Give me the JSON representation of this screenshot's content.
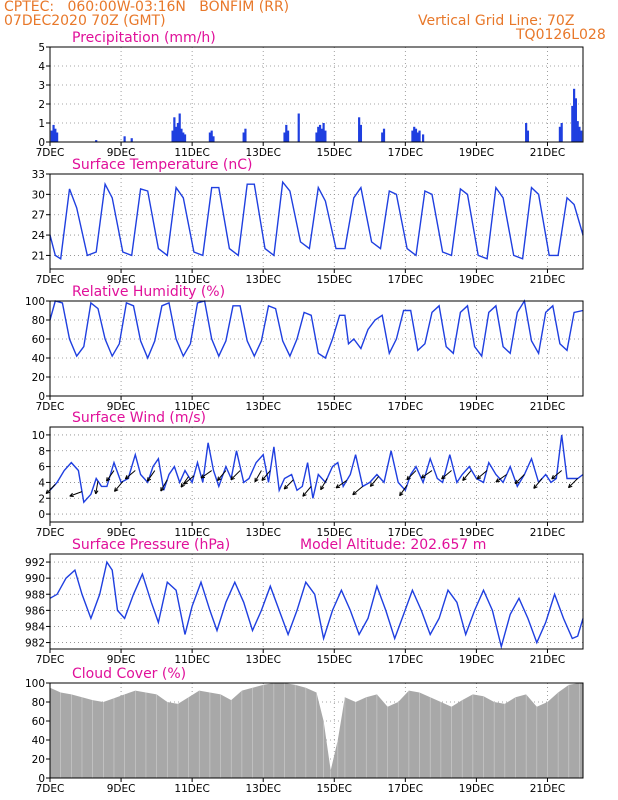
{
  "header": {
    "line1": "CPTEC:   060:00W-03:16N   BONFIM (RR)",
    "line2": "07DEC2020 70Z (GMT)",
    "right1": "Vertical Grid Line: 70Z",
    "right2": "TQ0126L028"
  },
  "colors": {
    "series": "#1f3fe0",
    "title": "#e0109a",
    "header": "#e8782a",
    "cloud": "#a8a8a8",
    "arrow": "#000000"
  },
  "x_axis": {
    "range_days": [
      7,
      22
    ],
    "tick_days": [
      7,
      9,
      11,
      13,
      15,
      17,
      19,
      21
    ],
    "tick_labels": [
      "7DEC",
      "9DEC",
      "11DEC",
      "13DEC",
      "15DEC",
      "17DEC",
      "19DEC",
      "21DEC"
    ]
  },
  "chart_data": [
    {
      "type": "bar",
      "id": "precip",
      "title": "Precipitation (mm/h)",
      "ylim": [
        0,
        5
      ],
      "yticks": [
        0,
        1,
        2,
        3,
        4,
        5
      ],
      "x": [
        7.05,
        7.1,
        7.15,
        7.2,
        8.3,
        9.1,
        9.3,
        10.45,
        10.5,
        10.55,
        10.6,
        10.65,
        10.7,
        10.75,
        10.8,
        11.5,
        11.55,
        11.6,
        12.45,
        12.5,
        13.6,
        13.65,
        13.7,
        14.0,
        14.5,
        14.55,
        14.6,
        14.65,
        14.7,
        14.75,
        15.7,
        15.75,
        16.35,
        16.4,
        17.2,
        17.25,
        17.3,
        17.35,
        17.4,
        17.5,
        20.4,
        20.45,
        21.35,
        21.4,
        21.7,
        21.75,
        21.8,
        21.85,
        21.9,
        21.95
      ],
      "values": [
        0.6,
        0.9,
        0.7,
        0.5,
        0.1,
        0.3,
        0.2,
        0.6,
        1.3,
        0.8,
        1.0,
        1.5,
        0.7,
        0.5,
        0.4,
        0.5,
        0.6,
        0.3,
        0.5,
        0.7,
        0.5,
        0.9,
        0.6,
        1.5,
        0.5,
        0.8,
        0.9,
        0.7,
        1.0,
        0.6,
        1.3,
        0.9,
        0.5,
        0.7,
        0.6,
        0.8,
        0.7,
        0.5,
        0.6,
        0.4,
        1.0,
        0.6,
        0.8,
        1.0,
        1.9,
        2.8,
        2.3,
        1.1,
        0.8,
        0.6
      ]
    },
    {
      "type": "line",
      "id": "temp",
      "title": "Surface Temperature (nC)",
      "ylim": [
        19,
        33
      ],
      "yticks": [
        21,
        24,
        27,
        30,
        33
      ],
      "x": [
        7.0,
        7.15,
        7.3,
        7.55,
        7.75,
        8.05,
        8.3,
        8.55,
        8.75,
        9.05,
        9.3,
        9.55,
        9.75,
        10.05,
        10.3,
        10.55,
        10.75,
        11.05,
        11.3,
        11.55,
        11.75,
        12.05,
        12.3,
        12.55,
        12.75,
        13.05,
        13.3,
        13.55,
        13.75,
        14.05,
        14.3,
        14.55,
        14.75,
        15.05,
        15.3,
        15.55,
        15.75,
        16.05,
        16.3,
        16.55,
        16.75,
        17.05,
        17.3,
        17.55,
        17.75,
        18.05,
        18.3,
        18.55,
        18.75,
        19.05,
        19.3,
        19.55,
        19.75,
        20.05,
        20.3,
        20.55,
        20.75,
        21.05,
        21.3,
        21.55,
        21.75,
        22.0
      ],
      "values": [
        24,
        21,
        20.5,
        30.8,
        28,
        21,
        21.5,
        31.5,
        29.5,
        21.5,
        21,
        30.8,
        30.5,
        22,
        21,
        31,
        29.5,
        21.5,
        21,
        31,
        31,
        22,
        21,
        31.5,
        31.5,
        22,
        21,
        31.8,
        30.5,
        23,
        22,
        31,
        29,
        22,
        22,
        29.5,
        31,
        23,
        22,
        30.5,
        30,
        22,
        21,
        30.5,
        30,
        21.5,
        21,
        30.8,
        30,
        21,
        20.5,
        31,
        29.5,
        21,
        20.5,
        31,
        30,
        21,
        21,
        29.5,
        28.5,
        24
      ]
    },
    {
      "type": "line",
      "id": "rh",
      "title": "Relative Humidity (%)",
      "ylim": [
        0,
        100
      ],
      "yticks": [
        0,
        20,
        40,
        60,
        80,
        100
      ],
      "x": [
        7.0,
        7.15,
        7.35,
        7.55,
        7.75,
        7.95,
        8.15,
        8.35,
        8.55,
        8.75,
        8.95,
        9.15,
        9.35,
        9.55,
        9.75,
        9.95,
        10.15,
        10.35,
        10.55,
        10.75,
        10.95,
        11.15,
        11.35,
        11.55,
        11.75,
        11.95,
        12.15,
        12.35,
        12.55,
        12.75,
        12.95,
        13.15,
        13.35,
        13.55,
        13.75,
        13.95,
        14.15,
        14.35,
        14.55,
        14.75,
        14.95,
        15.15,
        15.3,
        15.4,
        15.55,
        15.75,
        15.95,
        16.15,
        16.35,
        16.55,
        16.75,
        16.95,
        17.15,
        17.35,
        17.55,
        17.75,
        17.95,
        18.15,
        18.35,
        18.55,
        18.75,
        18.95,
        19.15,
        19.35,
        19.55,
        19.75,
        19.95,
        20.15,
        20.35,
        20.55,
        20.75,
        20.95,
        21.15,
        21.35,
        21.55,
        21.75,
        22.0
      ],
      "values": [
        80,
        100,
        98,
        60,
        42,
        52,
        98,
        92,
        60,
        42,
        55,
        98,
        95,
        58,
        40,
        58,
        95,
        98,
        60,
        42,
        55,
        98,
        100,
        60,
        42,
        58,
        95,
        95,
        58,
        42,
        58,
        95,
        92,
        58,
        42,
        60,
        88,
        85,
        45,
        40,
        60,
        85,
        85,
        55,
        60,
        50,
        70,
        80,
        85,
        45,
        60,
        90,
        90,
        48,
        55,
        88,
        95,
        52,
        45,
        88,
        95,
        52,
        42,
        88,
        95,
        52,
        45,
        88,
        100,
        58,
        45,
        88,
        95,
        55,
        48,
        88,
        90
      ]
    },
    {
      "type": "line",
      "id": "wind",
      "title": "Surface Wind (m/s)",
      "ylim": [
        -1,
        11
      ],
      "yticks": [
        0,
        2,
        4,
        6,
        8,
        10
      ],
      "x": [
        7.0,
        7.2,
        7.4,
        7.6,
        7.8,
        7.95,
        8.15,
        8.3,
        8.45,
        8.6,
        8.8,
        9.0,
        9.2,
        9.4,
        9.55,
        9.75,
        9.9,
        10.05,
        10.2,
        10.35,
        10.5,
        10.65,
        10.8,
        11.0,
        11.15,
        11.3,
        11.45,
        11.6,
        11.75,
        11.95,
        12.1,
        12.25,
        12.45,
        12.6,
        12.8,
        13.0,
        13.15,
        13.3,
        13.45,
        13.6,
        13.8,
        13.95,
        14.1,
        14.25,
        14.4,
        14.55,
        14.75,
        14.95,
        15.1,
        15.25,
        15.45,
        15.6,
        15.8,
        16.0,
        16.2,
        16.4,
        16.6,
        16.8,
        17.0,
        17.15,
        17.3,
        17.5,
        17.7,
        17.9,
        18.05,
        18.25,
        18.45,
        18.6,
        18.8,
        19.0,
        19.2,
        19.35,
        19.55,
        19.75,
        19.95,
        20.15,
        20.35,
        20.55,
        20.75,
        20.95,
        21.1,
        21.25,
        21.4,
        21.55,
        21.7,
        21.85,
        22.0
      ],
      "values": [
        3,
        4,
        5.5,
        6.5,
        5.5,
        1.5,
        2.5,
        4.5,
        3.5,
        3.5,
        6.5,
        4,
        4.5,
        7.5,
        5,
        4,
        6,
        7,
        3,
        5,
        6,
        4,
        5.5,
        4,
        6.5,
        4,
        9,
        5.5,
        3.5,
        6,
        4.5,
        8,
        4,
        4.5,
        6.5,
        7.5,
        4,
        8.5,
        3,
        4.5,
        5,
        3,
        3.5,
        6.5,
        2,
        5,
        4,
        6,
        6.5,
        3.5,
        5,
        7.5,
        3.5,
        4,
        5,
        4,
        8,
        4,
        3,
        5,
        6,
        4,
        7,
        4.5,
        4,
        7.5,
        4,
        5,
        6,
        4.5,
        4,
        6.5,
        5,
        4,
        6,
        3.5,
        5,
        7,
        4,
        5,
        4,
        4.5,
        10,
        4.5,
        4.5,
        4.5,
        5
      ]
    },
    {
      "type": "line",
      "id": "pres",
      "title": "Surface Pressure (hPa)",
      "annotation": "Model Altitude: 202.657 m",
      "ylim": [
        981.2,
        993
      ],
      "yticks": [
        982,
        984,
        986,
        988,
        990,
        992
      ],
      "x": [
        7.0,
        7.2,
        7.45,
        7.7,
        7.9,
        8.15,
        8.4,
        8.6,
        8.75,
        8.9,
        9.1,
        9.35,
        9.6,
        9.85,
        10.05,
        10.3,
        10.55,
        10.8,
        11.0,
        11.25,
        11.5,
        11.7,
        11.95,
        12.2,
        12.45,
        12.7,
        12.95,
        13.2,
        13.45,
        13.7,
        13.95,
        14.2,
        14.45,
        14.7,
        14.95,
        15.2,
        15.45,
        15.7,
        15.95,
        16.2,
        16.45,
        16.7,
        16.95,
        17.2,
        17.45,
        17.7,
        17.95,
        18.2,
        18.45,
        18.7,
        18.95,
        19.2,
        19.45,
        19.7,
        19.95,
        20.2,
        20.45,
        20.7,
        20.95,
        21.2,
        21.45,
        21.7,
        21.85,
        22.0
      ],
      "values": [
        987.5,
        988,
        990,
        991,
        988,
        985,
        988,
        992,
        991,
        986,
        985,
        988,
        990.5,
        987,
        984.5,
        989.5,
        988.5,
        983,
        986.5,
        989.5,
        986,
        983.5,
        987,
        989.5,
        987,
        983.5,
        986,
        989,
        986,
        983,
        986,
        989.5,
        988,
        982.5,
        986,
        988.5,
        986,
        983,
        985,
        989,
        986,
        982.5,
        985.5,
        988.5,
        986,
        983,
        985,
        988.5,
        987,
        983,
        986,
        988.5,
        986,
        981.5,
        985.5,
        987.5,
        985,
        982,
        984.5,
        988,
        985,
        982.5,
        982.8,
        985
      ]
    },
    {
      "type": "area",
      "id": "cloud",
      "title": "Cloud Cover (%)",
      "ylim": [
        0,
        100
      ],
      "yticks": [
        0,
        20,
        40,
        60,
        80,
        100
      ],
      "x": [
        7.0,
        7.3,
        7.6,
        7.9,
        8.2,
        8.5,
        8.8,
        9.1,
        9.4,
        9.7,
        10.0,
        10.3,
        10.6,
        10.9,
        11.2,
        11.5,
        11.8,
        12.1,
        12.4,
        12.7,
        13.0,
        13.3,
        13.6,
        13.9,
        14.2,
        14.5,
        14.7,
        14.9,
        15.1,
        15.3,
        15.6,
        15.9,
        16.2,
        16.5,
        16.8,
        17.1,
        17.4,
        17.7,
        18.0,
        18.3,
        18.6,
        18.9,
        19.2,
        19.5,
        19.8,
        20.1,
        20.4,
        20.7,
        21.0,
        21.3,
        21.6,
        21.9,
        22.0
      ],
      "values": [
        95,
        90,
        88,
        85,
        82,
        80,
        84,
        88,
        92,
        90,
        88,
        80,
        78,
        85,
        92,
        90,
        88,
        82,
        92,
        95,
        98,
        100,
        100,
        98,
        95,
        90,
        60,
        8,
        40,
        85,
        80,
        85,
        88,
        75,
        80,
        92,
        90,
        85,
        80,
        75,
        82,
        88,
        86,
        80,
        78,
        85,
        88,
        75,
        80,
        90,
        98,
        100,
        100
      ]
    }
  ],
  "wind_arrows": [
    {
      "day": 7.15,
      "ang": 225
    },
    {
      "day": 7.9,
      "ang": 200
    },
    {
      "day": 8.35,
      "ang": 260
    },
    {
      "day": 8.8,
      "ang": 235
    },
    {
      "day": 9.05,
      "ang": 230
    },
    {
      "day": 9.4,
      "ang": 220
    },
    {
      "day": 9.95,
      "ang": 235
    },
    {
      "day": 10.3,
      "ang": 240
    },
    {
      "day": 10.9,
      "ang": 235
    },
    {
      "day": 11.05,
      "ang": 220
    },
    {
      "day": 11.55,
      "ang": 215
    },
    {
      "day": 11.95,
      "ang": 230
    },
    {
      "day": 12.35,
      "ang": 225
    },
    {
      "day": 12.95,
      "ang": 240
    },
    {
      "day": 13.2,
      "ang": 230
    },
    {
      "day": 13.85,
      "ang": 225
    },
    {
      "day": 14.35,
      "ang": 230
    },
    {
      "day": 14.8,
      "ang": 240
    },
    {
      "day": 15.35,
      "ang": 215
    },
    {
      "day": 15.8,
      "ang": 220
    },
    {
      "day": 16.25,
      "ang": 230
    },
    {
      "day": 17.05,
      "ang": 235
    },
    {
      "day": 17.3,
      "ang": 225
    },
    {
      "day": 17.75,
      "ang": 215
    },
    {
      "day": 18.3,
      "ang": 220
    },
    {
      "day": 18.85,
      "ang": 230
    },
    {
      "day": 19.3,
      "ang": 220
    },
    {
      "day": 19.85,
      "ang": 215
    },
    {
      "day": 20.35,
      "ang": 225
    },
    {
      "day": 20.85,
      "ang": 230
    },
    {
      "day": 21.4,
      "ang": 220
    },
    {
      "day": 21.85,
      "ang": 225
    }
  ]
}
